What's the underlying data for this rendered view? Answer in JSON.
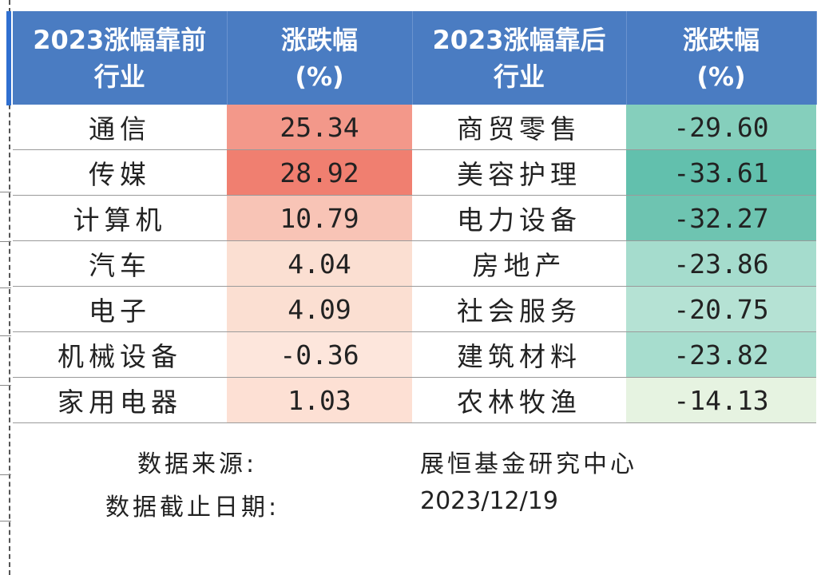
{
  "table": {
    "headers": [
      [
        "2023涨幅靠前",
        "行业"
      ],
      [
        "涨跌幅",
        "(%)"
      ],
      [
        "2023涨幅靠后",
        "行业"
      ],
      [
        "涨跌幅",
        "(%)"
      ]
    ],
    "rows": [
      {
        "top_industry": "通信",
        "top_change": "25.34",
        "bottom_industry": "商贸零售",
        "bottom_change": "-29.60"
      },
      {
        "top_industry": "传媒",
        "top_change": "28.92",
        "bottom_industry": "美容护理",
        "bottom_change": "-33.61"
      },
      {
        "top_industry": "计算机",
        "top_change": "10.79",
        "bottom_industry": "电力设备",
        "bottom_change": "-32.27"
      },
      {
        "top_industry": "汽车",
        "top_change": "4.04",
        "bottom_industry": "房地产",
        "bottom_change": "-23.86"
      },
      {
        "top_industry": "电子",
        "top_change": "4.09",
        "bottom_industry": "社会服务",
        "bottom_change": "-20.75"
      },
      {
        "top_industry": "机械设备",
        "top_change": "-0.36",
        "bottom_industry": "建筑材料",
        "bottom_change": "-23.82"
      },
      {
        "top_industry": "家用电器",
        "top_change": "1.03",
        "bottom_industry": "农林牧渔",
        "bottom_change": "-14.13"
      }
    ]
  },
  "footer": {
    "source_label": "数据来源:",
    "source_value": "展恒基金研究中心",
    "date_label": "数据截止日期:",
    "date_value": "2023/12/19"
  },
  "colors": {
    "header_bg": "#4a7cc2",
    "header_text": "#ffffff",
    "top_change_fills": [
      "#f3988a",
      "#f07f70",
      "#f8c4b6",
      "#fbdfd2",
      "#fbdfd2",
      "#fde6dc",
      "#fde0d4"
    ],
    "bottom_change_fills": [
      "#85cfbc",
      "#62c0ad",
      "#6ec4b1",
      "#a5dccd",
      "#b5e2d4",
      "#a7ddce",
      "#e6f3e1"
    ]
  }
}
